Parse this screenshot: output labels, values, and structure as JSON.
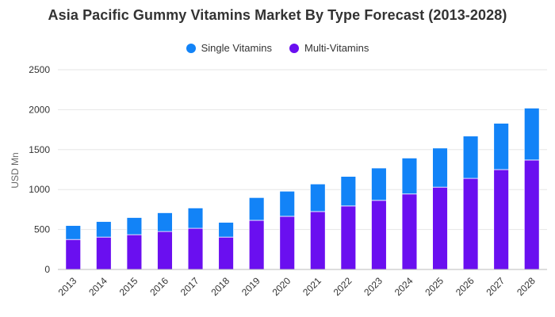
{
  "chart_data": {
    "type": "bar",
    "stacked": true,
    "title": "Asia Pacific Gummy Vitamins Market By Type Forecast (2013-2028)",
    "xlabel": "",
    "ylabel": "USD Mn",
    "ylim": [
      0,
      2500
    ],
    "yticks": [
      0,
      500,
      1000,
      1500,
      2000,
      2500
    ],
    "grid": true,
    "legend_position": "top-center",
    "categories": [
      "2013",
      "2014",
      "2015",
      "2016",
      "2017",
      "2018",
      "2019",
      "2020",
      "2021",
      "2022",
      "2023",
      "2024",
      "2025",
      "2026",
      "2027",
      "2028"
    ],
    "series": [
      {
        "name": "Multi-Vitamins",
        "color": "#6a0ff0",
        "values": [
          375,
          405,
          435,
          475,
          515,
          405,
          615,
          665,
          725,
          795,
          865,
          945,
          1030,
          1140,
          1250,
          1370
        ]
      },
      {
        "name": "Single Vitamins",
        "color": "#1283f7",
        "values": [
          175,
          195,
          215,
          235,
          255,
          185,
          285,
          315,
          345,
          370,
          405,
          450,
          490,
          530,
          580,
          650
        ]
      }
    ]
  }
}
